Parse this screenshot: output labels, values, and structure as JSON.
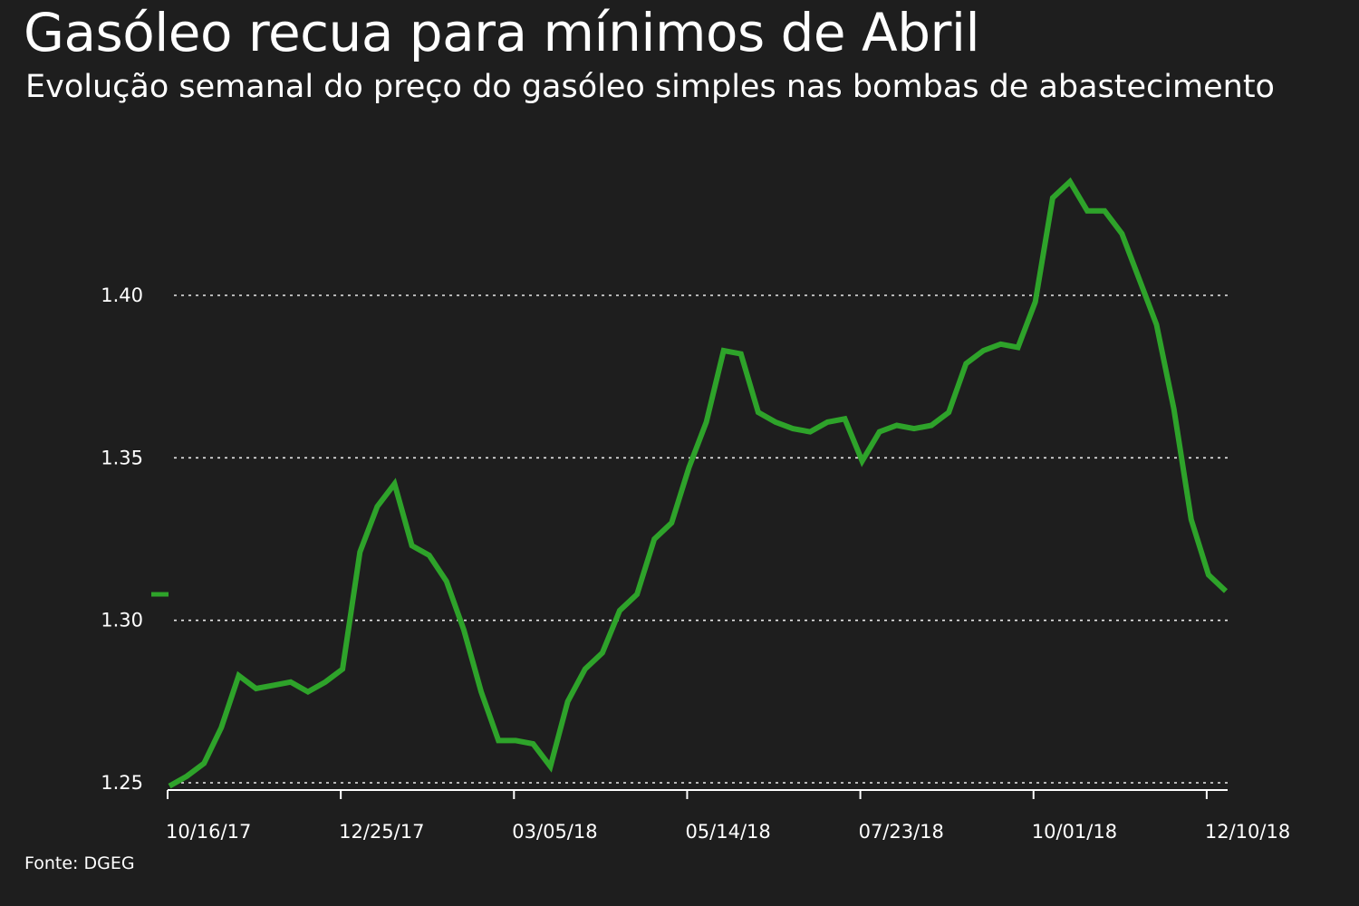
{
  "title": "Gasóleo recua para mínimos de Abril",
  "subtitle": "Evolução semanal do preço do gasóleo simples nas bombas de abastecimento",
  "source": "Fonte: DGEG",
  "colors": {
    "background": "#1e1e1e",
    "line": "#2ea32a",
    "text": "#ffffff",
    "grid": "#ffffff"
  },
  "chart_data": {
    "type": "line",
    "title": "Gasóleo recua para mínimos de Abril",
    "subtitle": "Evolução semanal do preço do gasóleo simples nas bombas de abastecimento",
    "xlabel": "",
    "ylabel": "",
    "ylim": [
      1.245,
      1.445
    ],
    "yticks": [
      1.25,
      1.3,
      1.35,
      1.4
    ],
    "ytick_labels": [
      "1.25",
      "1.30",
      "1.35",
      "1.40"
    ],
    "xtick_labels": [
      "10/16/17",
      "12/25/17",
      "03/05/18",
      "05/14/18",
      "07/23/18",
      "10/01/18",
      "12/10/18"
    ],
    "xtick_index": [
      0,
      10,
      20,
      30,
      40,
      50,
      60
    ],
    "grid": "horizontal dotted",
    "legend": "none",
    "x": [
      "10/16/17",
      "10/23/17",
      "10/30/17",
      "11/06/17",
      "11/13/17",
      "11/20/17",
      "11/27/17",
      "12/04/17",
      "12/11/17",
      "12/18/17",
      "12/25/17",
      "01/01/18",
      "01/08/18",
      "01/15/18",
      "01/22/18",
      "01/29/18",
      "02/05/18",
      "02/12/18",
      "02/19/18",
      "02/26/18",
      "03/05/18",
      "03/12/18",
      "03/19/18",
      "03/26/18",
      "04/02/18",
      "04/09/18",
      "04/16/18",
      "04/23/18",
      "04/30/18",
      "05/07/18",
      "05/14/18",
      "05/21/18",
      "05/28/18",
      "06/04/18",
      "06/11/18",
      "06/18/18",
      "06/25/18",
      "07/02/18",
      "07/09/18",
      "07/16/18",
      "07/23/18",
      "07/30/18",
      "08/06/18",
      "08/13/18",
      "08/20/18",
      "08/27/18",
      "09/03/18",
      "09/10/18",
      "09/17/18",
      "09/24/18",
      "10/01/18",
      "10/08/18",
      "10/15/18",
      "10/22/18",
      "10/29/18",
      "11/05/18",
      "11/12/18",
      "11/19/18",
      "11/26/18",
      "12/03/18",
      "12/10/18",
      "12/17/18"
    ],
    "series": [
      {
        "values": [
          1.249,
          1.252,
          1.256,
          1.267,
          1.283,
          1.279,
          1.28,
          1.281,
          1.278,
          1.281,
          1.285,
          1.321,
          1.335,
          1.342,
          1.323,
          1.32,
          1.312,
          1.297,
          1.278,
          1.263,
          1.263,
          1.262,
          1.255,
          1.275,
          1.285,
          1.29,
          1.303,
          1.308,
          1.325,
          1.33,
          1.347,
          1.361,
          1.383,
          1.382,
          1.364,
          1.361,
          1.359,
          1.358,
          1.361,
          1.362,
          1.349,
          1.358,
          1.36,
          1.359,
          1.36,
          1.364,
          1.379,
          1.383,
          1.385,
          1.384,
          1.398,
          1.43,
          1.435,
          1.426,
          1.426,
          1.419,
          1.405,
          1.391,
          1.365,
          1.331,
          1.314,
          1.309
        ]
      }
    ],
    "annotations": [
      {
        "type": "marker",
        "y": 1.308,
        "description": "short line segment left of plot marking latest value"
      }
    ]
  }
}
